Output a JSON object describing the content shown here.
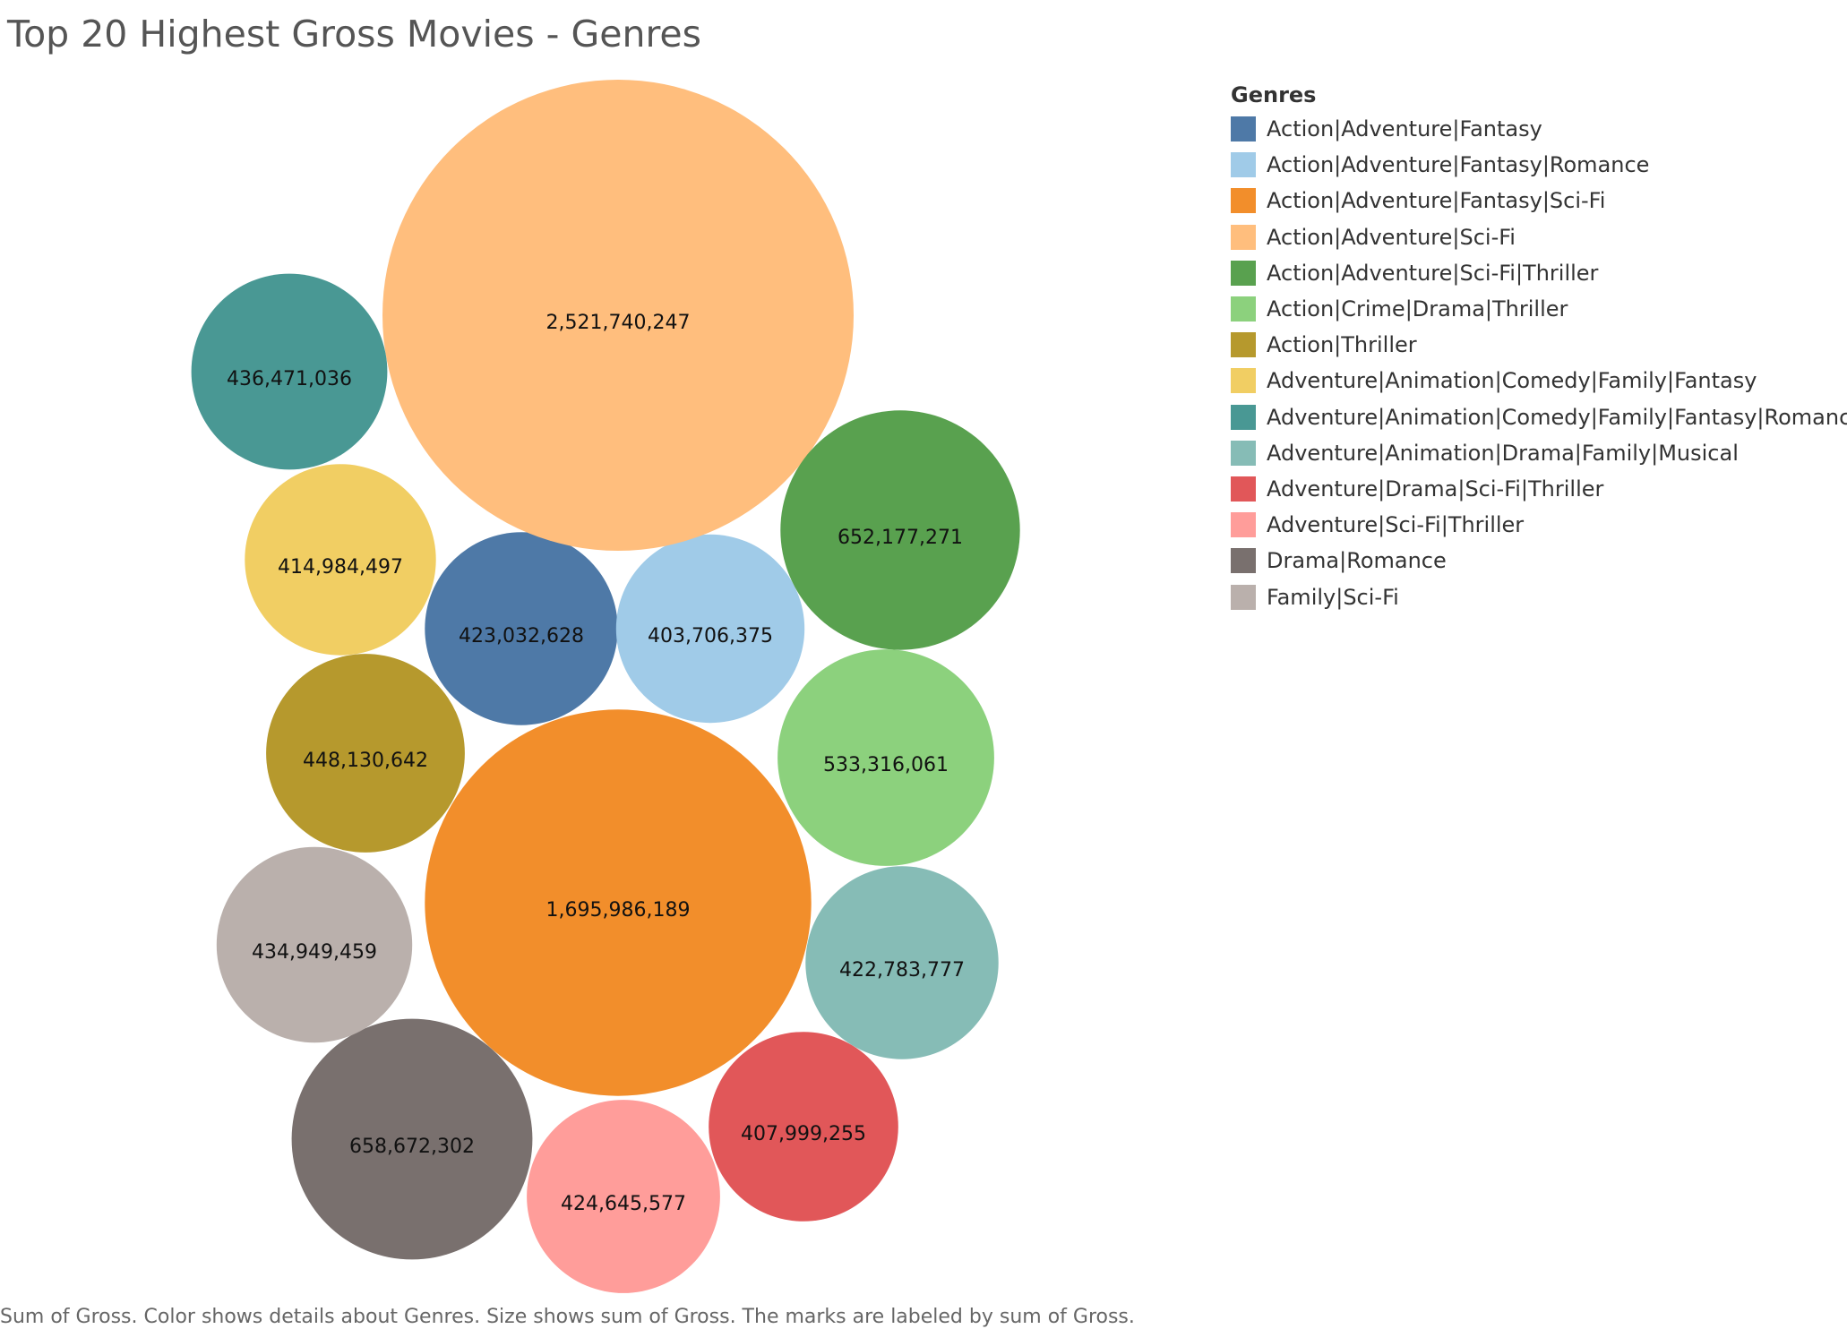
{
  "chart_data": {
    "type": "packed-bubble",
    "title": "Top 20 Highest Gross Movies - Genres",
    "legend_title": "Genres",
    "legend_position": "right",
    "caption": "Sum of Gross.  Color shows details about Genres.  Size shows sum of Gross.  The marks are labeled by sum of Gross.",
    "series": [
      {
        "name": "Action|Adventure|Fantasy",
        "value": 423032628,
        "label": "423,032,628",
        "color": "#4E79A7"
      },
      {
        "name": "Action|Adventure|Fantasy|Romance",
        "value": 403706375,
        "label": "403,706,375",
        "color": "#A0CBE8"
      },
      {
        "name": "Action|Adventure|Fantasy|Sci-Fi",
        "value": 1695986189,
        "label": "1,695,986,189",
        "color": "#F28E2B"
      },
      {
        "name": "Action|Adventure|Sci-Fi",
        "value": 2521740247,
        "label": "2,521,740,247",
        "color": "#FFBE7D"
      },
      {
        "name": "Action|Adventure|Sci-Fi|Thriller",
        "value": 652177271,
        "label": "652,177,271",
        "color": "#59A14F"
      },
      {
        "name": "Action|Crime|Drama|Thriller",
        "value": 533316061,
        "label": "533,316,061",
        "color": "#8CD17D"
      },
      {
        "name": "Action|Thriller",
        "value": 448130642,
        "label": "448,130,642",
        "color": "#B6992D"
      },
      {
        "name": "Adventure|Animation|Comedy|Family|Fantasy",
        "value": 414984497,
        "label": "414,984,497",
        "color": "#F1CE63"
      },
      {
        "name": "Adventure|Animation|Comedy|Family|Fantasy|Romance",
        "value": 436471036,
        "label": "436,471,036",
        "color": "#499894"
      },
      {
        "name": "Adventure|Animation|Drama|Family|Musical",
        "value": 422783777,
        "label": "422,783,777",
        "color": "#86BCB6"
      },
      {
        "name": "Adventure|Drama|Sci-Fi|Thriller",
        "value": 407999255,
        "label": "407,999,255",
        "color": "#E15759"
      },
      {
        "name": "Adventure|Sci-Fi|Thriller",
        "value": 424645577,
        "label": "424,645,577",
        "color": "#FF9D9A"
      },
      {
        "name": "Drama|Romance",
        "value": 658672302,
        "label": "658,672,302",
        "color": "#79706E"
      },
      {
        "name": "Family|Sci-Fi",
        "value": 434949459,
        "label": "434,949,459",
        "color": "#BAB0AC"
      }
    ]
  }
}
